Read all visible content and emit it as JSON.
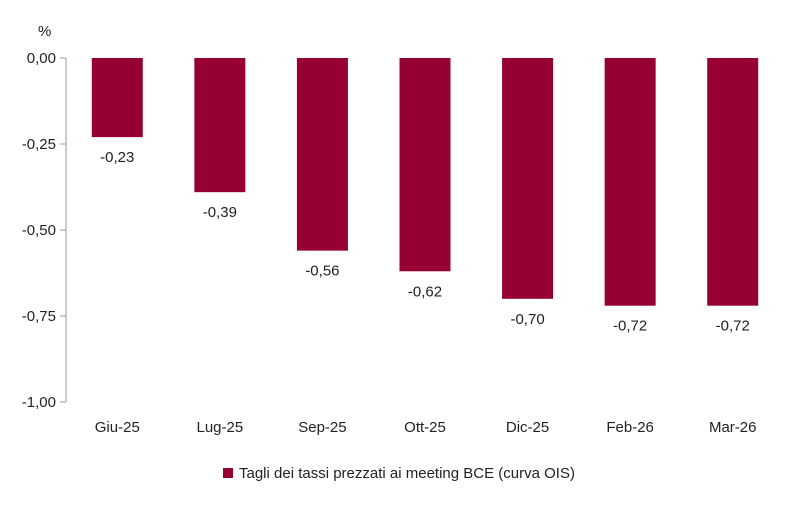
{
  "chart_data": {
    "type": "bar",
    "unit_label": "%",
    "categories": [
      "Giu-25",
      "Lug-25",
      "Sep-25",
      "Ott-25",
      "Dic-25",
      "Feb-26",
      "Mar-26"
    ],
    "series": [
      {
        "name": "Tagli dei tassi prezzati ai meeting BCE (curva OIS)",
        "values": [
          -0.23,
          -0.39,
          -0.56,
          -0.62,
          -0.7,
          -0.72,
          -0.72
        ],
        "color": "#960032"
      }
    ],
    "data_labels": [
      "-0,23",
      "-0,39",
      "-0,56",
      "-0,62",
      "-0,70",
      "-0,72",
      "-0,72"
    ],
    "yticks": [
      0,
      -0.25,
      -0.5,
      -0.75,
      -1
    ],
    "ytick_labels": [
      "0,00",
      "-0,25",
      "-0,50",
      "-0,75",
      "-1,00"
    ],
    "ylim": [
      -1,
      0
    ],
    "grid": false,
    "legend_position": "bottom"
  }
}
